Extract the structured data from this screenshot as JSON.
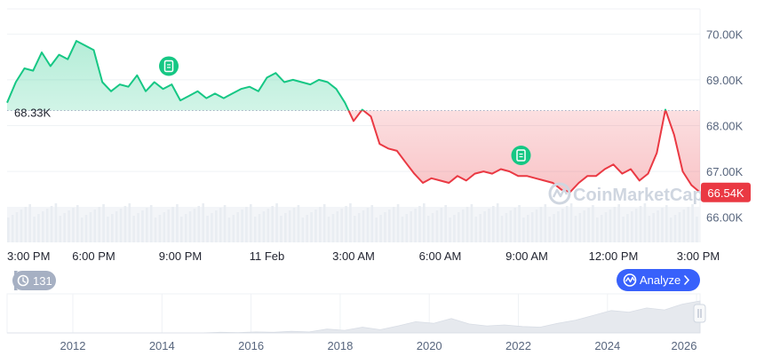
{
  "chart_data": {
    "type": "line",
    "baseline": {
      "value": 68.33,
      "label": "68.33K"
    },
    "last_value": {
      "value": 66.54,
      "label": "66.54K"
    },
    "watermark": "CoinMarketCap",
    "y_axis": {
      "min": 65.45,
      "max": 70.55,
      "ticks": [
        {
          "value": 70.0,
          "label": "70.00K"
        },
        {
          "value": 69.0,
          "label": "69.00K"
        },
        {
          "value": 68.0,
          "label": "68.00K"
        },
        {
          "value": 67.0,
          "label": "67.00K"
        },
        {
          "value": 66.0,
          "label": "66.00K"
        }
      ]
    },
    "x_axis": {
      "min": 0,
      "max": 24,
      "ticks": [
        {
          "t": 0,
          "label": "3:00 PM"
        },
        {
          "t": 3,
          "label": "6:00 PM"
        },
        {
          "t": 6,
          "label": "9:00 PM"
        },
        {
          "t": 9,
          "label": "11 Feb"
        },
        {
          "t": 12,
          "label": "3:00 AM"
        },
        {
          "t": 15,
          "label": "6:00 AM"
        },
        {
          "t": 18,
          "label": "9:00 AM"
        },
        {
          "t": 21,
          "label": "12:00 PM"
        },
        {
          "t": 24,
          "label": "3:00 PM"
        }
      ]
    },
    "series": [
      {
        "x": [
          0,
          0.3,
          0.6,
          0.9,
          1.2,
          1.5,
          1.8,
          2.1,
          2.4,
          2.7,
          3.0,
          3.3,
          3.6,
          3.9,
          4.2,
          4.5,
          4.8,
          5.1,
          5.4,
          5.7,
          6.0,
          6.3,
          6.6,
          6.9,
          7.2,
          7.5,
          7.8,
          8.1,
          8.4,
          8.7,
          9.0,
          9.3,
          9.6,
          9.9,
          10.2,
          10.5,
          10.8,
          11.1,
          11.4,
          11.7,
          12.0,
          12.3,
          12.6,
          12.9,
          13.2,
          13.5,
          13.8,
          14.1,
          14.4,
          14.7,
          15.0,
          15.3,
          15.6,
          15.9,
          16.2,
          16.5,
          16.8,
          17.1,
          17.4,
          17.7,
          18.0,
          18.3,
          18.6,
          18.9,
          19.2,
          19.5,
          19.8,
          20.1,
          20.4,
          20.7,
          21.0,
          21.3,
          21.6,
          21.9,
          22.2,
          22.5,
          22.8,
          23.1,
          23.4,
          23.7,
          24.0
        ],
        "values": [
          68.5,
          68.95,
          69.25,
          69.2,
          69.6,
          69.3,
          69.55,
          69.45,
          69.85,
          69.75,
          69.65,
          68.95,
          68.75,
          68.9,
          68.85,
          69.1,
          68.75,
          68.95,
          68.8,
          68.9,
          68.55,
          68.65,
          68.75,
          68.6,
          68.7,
          68.6,
          68.7,
          68.8,
          68.85,
          68.75,
          69.05,
          69.15,
          68.95,
          69.0,
          68.95,
          68.9,
          69.0,
          68.95,
          68.8,
          68.5,
          68.1,
          68.35,
          68.2,
          67.6,
          67.5,
          67.45,
          67.2,
          66.95,
          66.75,
          66.85,
          66.8,
          66.75,
          66.9,
          66.8,
          66.95,
          67.0,
          66.95,
          67.05,
          67.0,
          66.9,
          66.9,
          66.85,
          66.8,
          66.75,
          66.6,
          66.55,
          66.75,
          66.9,
          66.9,
          67.05,
          67.15,
          66.95,
          67.05,
          66.8,
          66.95,
          67.4,
          68.35,
          67.8,
          67.0,
          66.7,
          66.54
        ]
      }
    ],
    "annotations": [
      {
        "x": 5.6,
        "y": 69.3,
        "icon": "document-icon"
      },
      {
        "x": 17.8,
        "y": 67.35,
        "icon": "document-icon"
      }
    ],
    "colors": {
      "up": "#16c784",
      "down": "#ea3943",
      "axis_text": "#58667e",
      "grid": "#eff2f5"
    }
  },
  "history_badge": {
    "icon": "history-icon",
    "label": "131"
  },
  "analyze_button": {
    "icon": "pulse-icon",
    "label": "Analyze",
    "chevron": "chevron-right-icon",
    "color": "#3861fb"
  },
  "navigator": {
    "year_ticks": [
      "2012",
      "2014",
      "2016",
      "2018",
      "2020",
      "2022",
      "2024",
      "2026"
    ],
    "handle_icon": "drag-handle-icon"
  }
}
